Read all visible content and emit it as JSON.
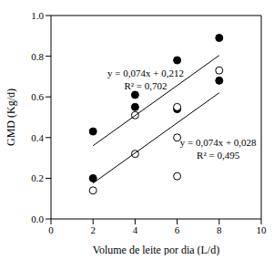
{
  "chart_data": {
    "type": "scatter",
    "x_label": "Volume de leite por dia (L/d)",
    "y_label": "GMD (Kg/d)",
    "xlim": [
      0,
      10
    ],
    "xticks": [
      0,
      2,
      4,
      6,
      8,
      10
    ],
    "ylim": [
      0,
      1
    ],
    "yticks": [
      {
        "value": 0,
        "label": "0.0"
      },
      0.2,
      0.4,
      0.6,
      0.8,
      {
        "value": 1,
        "label": "1.0"
      }
    ],
    "grid": false,
    "series": [
      {
        "type": "scatter",
        "color": "#000000",
        "marker": "filled",
        "x": [
          2,
          2,
          4,
          4,
          6,
          6,
          8,
          8
        ],
        "values": [
          0.43,
          0.2,
          0.61,
          0.55,
          0.78,
          0.54,
          0.89,
          0.68
        ]
      },
      {
        "type": "scatter",
        "color": "#000000",
        "marker": "open",
        "x": [
          2,
          4,
          4,
          6,
          6,
          6,
          8
        ],
        "values": [
          0.14,
          0.51,
          0.32,
          0.55,
          0.4,
          0.21,
          0.73
        ]
      },
      {
        "type": "line",
        "color": "#000000",
        "line_style": "solid",
        "x": [
          2,
          8
        ],
        "values": [
          0.36,
          0.804
        ]
      },
      {
        "type": "line",
        "color": "#000000",
        "line_style": "solid",
        "x": [
          2,
          8
        ],
        "values": [
          0.176,
          0.62
        ]
      }
    ],
    "annotations": [
      "y = 0,074x + 0,212",
      "R² = 0,702",
      "y = 0,074x + 0,028",
      "R² = 0,495"
    ]
  }
}
